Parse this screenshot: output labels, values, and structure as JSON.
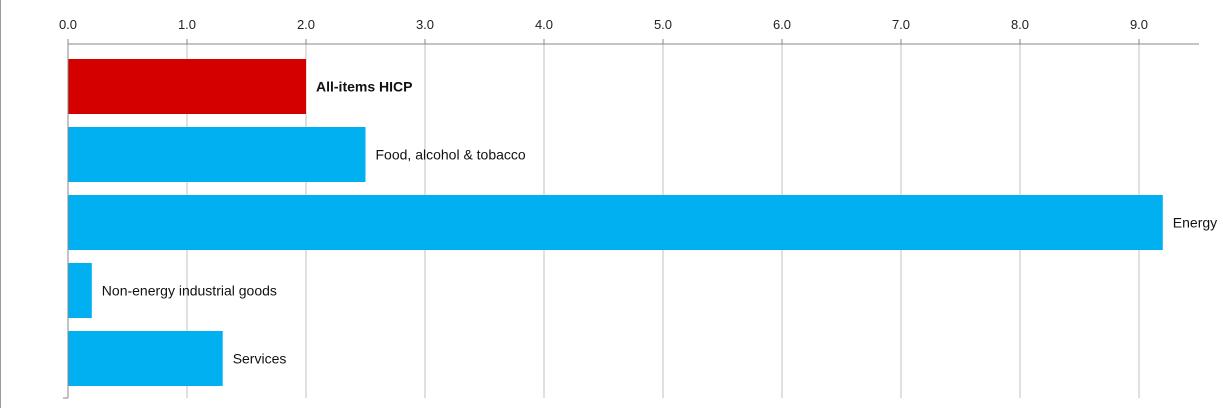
{
  "chart_data": {
    "type": "bar",
    "orientation": "horizontal",
    "title": "",
    "xlabel": "",
    "ylabel": "",
    "xlim": [
      0,
      9.5
    ],
    "x_ticks": [
      "0.0",
      "1.0",
      "2.0",
      "3.0",
      "4.0",
      "5.0",
      "6.0",
      "7.0",
      "8.0",
      "9.0"
    ],
    "x_tick_values": [
      0,
      1,
      2,
      3,
      4,
      5,
      6,
      7,
      8,
      9
    ],
    "categories": [
      "All-items HICP",
      "Food, alcohol & tobacco",
      "Energy",
      "Non-energy industrial goods",
      "Services"
    ],
    "values": [
      2.0,
      2.5,
      9.2,
      0.2,
      1.3
    ],
    "bar_colors": [
      "#d40000",
      "#00b0f0",
      "#00b0f0",
      "#00b0f0",
      "#00b0f0"
    ],
    "bold_labels": [
      true,
      false,
      false,
      false,
      false
    ],
    "grid": true,
    "legend": "none"
  }
}
